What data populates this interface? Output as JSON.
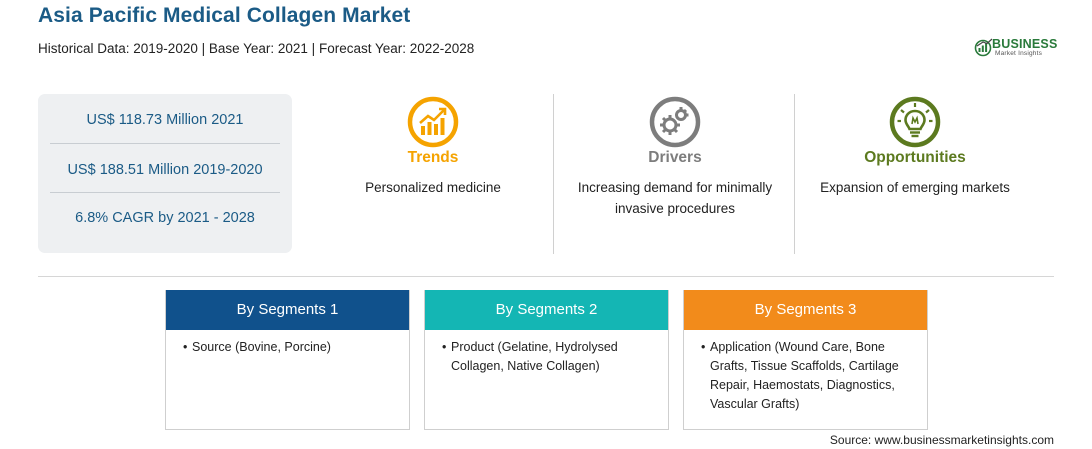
{
  "header": {
    "title": "Asia Pacific Medical Collagen Market",
    "subtitle": "Historical Data: 2019-2020 | Base Year: 2021 | Forecast Year: 2022-2028"
  },
  "logo": {
    "name": "BUSINESS",
    "sub": "Market Insights"
  },
  "stats": [
    "US$ 118.73 Million 2021",
    "US$ 188.51 Million 2019-2020",
    "6.8% CAGR by 2021 - 2028"
  ],
  "factors": [
    {
      "title": "Trends",
      "text": "Personalized medicine",
      "color": "#f5a300",
      "icon": "trend-chart-icon"
    },
    {
      "title": "Drivers",
      "text": "Increasing demand for minimally invasive procedures",
      "color": "#7d7d7d",
      "icon": "gears-icon"
    },
    {
      "title": "Opportunities",
      "text": "Expansion of emerging markets",
      "color": "#5c7a1f",
      "icon": "lightbulb-icon"
    }
  ],
  "segments": [
    {
      "title": "By Segments 1",
      "bullet": "•",
      "text": "Source (Bovine, Porcine)",
      "color": "#10518c"
    },
    {
      "title": "By Segments 2",
      "bullet": "•",
      "text": "Product (Gelatine, Hydrolysed Collagen, Native Collagen)",
      "color": "#14b6b4"
    },
    {
      "title": "By Segments 3",
      "bullet": "•",
      "text": "Application (Wound Care, Bone Grafts, Tissue Scaffolds, Cartilage Repair, Haemostats, Diagnostics, Vascular Grafts)",
      "color": "#f28b1b"
    }
  ],
  "source": "Source: www.businessmarketinsights.com"
}
